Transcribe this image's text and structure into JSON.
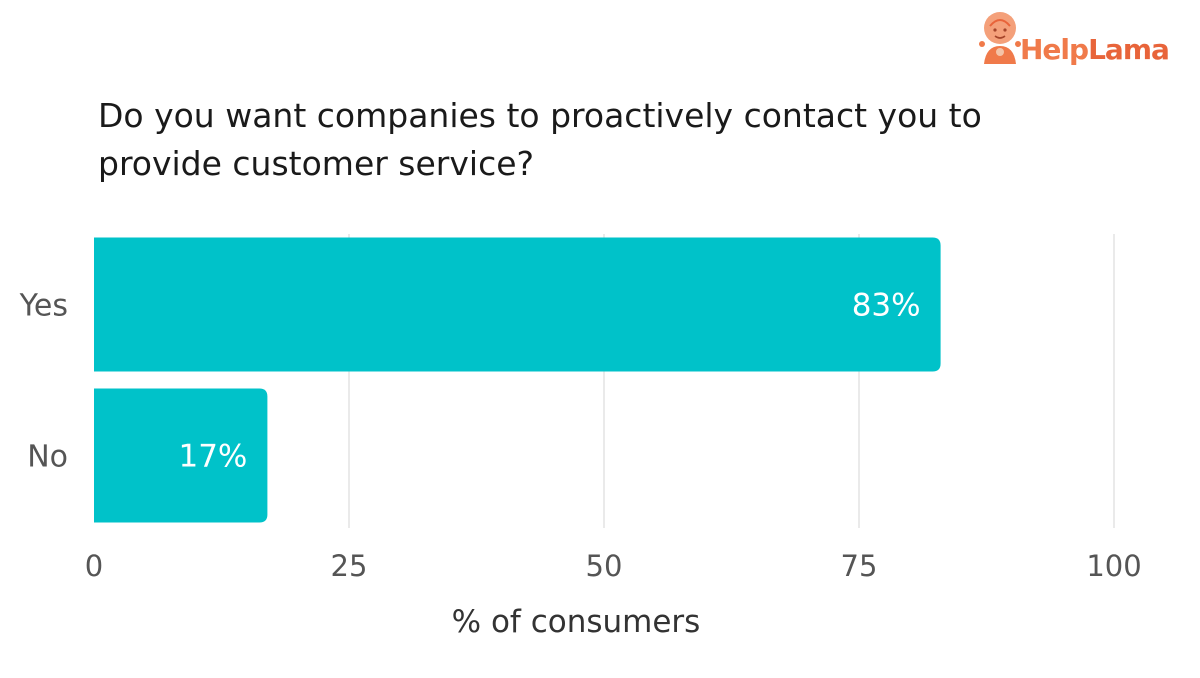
{
  "brand": {
    "name_part1": "Help",
    "name_part2": "Lama",
    "color": "#f07a4a"
  },
  "title": {
    "line1": "Do you want companies to proactively contact you to",
    "line2": "provide customer service?"
  },
  "chart_data": {
    "type": "bar",
    "orientation": "horizontal",
    "categories": [
      "Yes",
      "No"
    ],
    "values": [
      83,
      17
    ],
    "data_labels": [
      "83%",
      "17%"
    ],
    "xlabel": "% of consumers",
    "ylabel": "",
    "xlim": [
      0,
      100
    ],
    "xticks": [
      0,
      25,
      50,
      75,
      100
    ],
    "grid": true,
    "bar_color": "#00c2c9",
    "grid_color": "#e3e3e3"
  }
}
